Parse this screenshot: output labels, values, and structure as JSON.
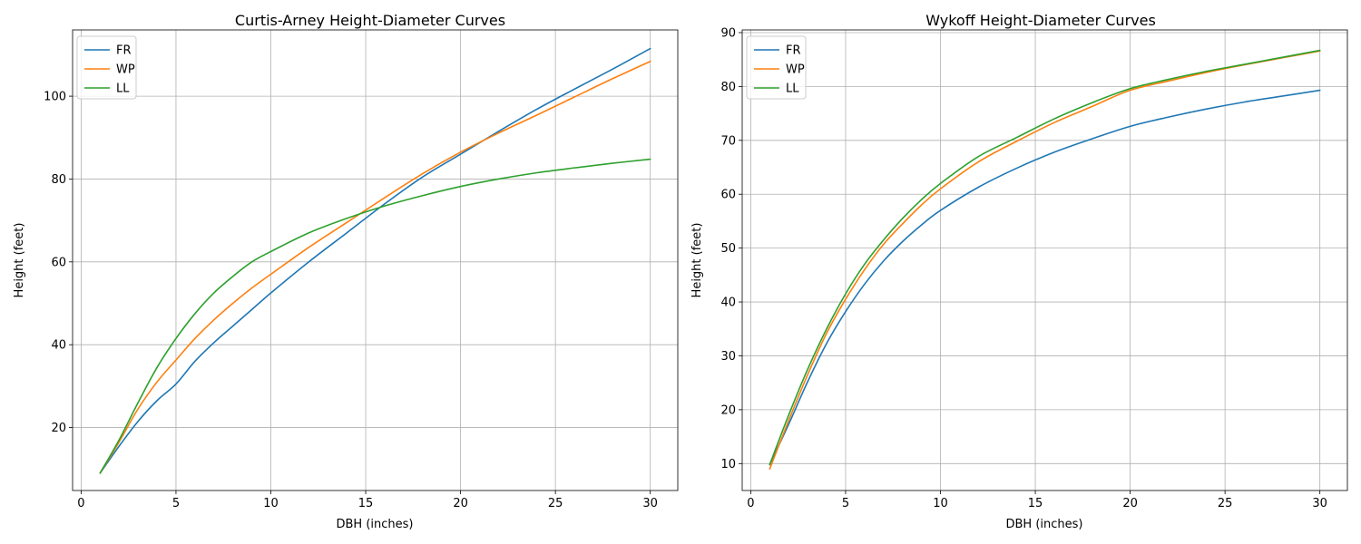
{
  "chart_data": [
    {
      "type": "line",
      "title": "Curtis-Arney Height-Diameter Curves",
      "xlabel": "DBH (inches)",
      "ylabel": "Height (feet)",
      "xlim": [
        -0.45,
        31.45
      ],
      "ylim": [
        4.8,
        116.0
      ],
      "xticks": [
        0,
        5,
        10,
        15,
        20,
        25,
        30
      ],
      "yticks": [
        20,
        40,
        60,
        80,
        100
      ],
      "grid": true,
      "legend": "upper-left",
      "x": [
        1,
        2,
        3,
        4,
        5,
        6,
        7,
        8,
        9,
        10,
        12,
        14,
        16,
        18,
        20,
        22,
        24,
        26,
        28,
        30
      ],
      "series": [
        {
          "name": "FR",
          "color": "#1f77b4",
          "values": [
            9,
            15.5,
            21.5,
            26.5,
            30.5,
            36,
            40.5,
            44.5,
            48.5,
            52.5,
            60,
            67,
            74,
            80.5,
            86,
            91.5,
            96.8,
            101.7,
            106.5,
            111.5
          ]
        },
        {
          "name": "WP",
          "color": "#ff7f0e",
          "values": [
            9,
            16.5,
            24.5,
            31,
            36.3,
            41.5,
            46,
            50,
            53.7,
            57,
            63.5,
            69.5,
            75.5,
            81.3,
            86.5,
            91.1,
            95.4,
            99.8,
            104.2,
            108.4
          ]
        },
        {
          "name": "LL",
          "color": "#2ca02c",
          "values": [
            9,
            17,
            26,
            34.5,
            41.5,
            47.5,
            52.5,
            56.5,
            60,
            62.5,
            67,
            70.5,
            73.5,
            76,
            78.2,
            80,
            81.5,
            82.7,
            83.8,
            84.8
          ]
        }
      ]
    },
    {
      "type": "line",
      "title": "Wykoff Height-Diameter Curves",
      "xlabel": "DBH (inches)",
      "ylabel": "Height (feet)",
      "xlim": [
        -0.45,
        31.45
      ],
      "ylim": [
        5.0,
        90.5
      ],
      "xticks": [
        0,
        5,
        10,
        15,
        20,
        25,
        30
      ],
      "yticks": [
        10,
        20,
        30,
        40,
        50,
        60,
        70,
        80,
        90
      ],
      "grid": true,
      "legend": "upper-left",
      "x": [
        1,
        2,
        3,
        4,
        5,
        6,
        7,
        8,
        9,
        10,
        12,
        14,
        16,
        18,
        20,
        22,
        24,
        26,
        28,
        30
      ],
      "series": [
        {
          "name": "FR",
          "color": "#1f77b4",
          "values": [
            9.8,
            17.3,
            25.2,
            32.3,
            38.2,
            43.3,
            47.6,
            51.2,
            54.3,
            57.0,
            61.3,
            64.8,
            67.8,
            70.3,
            72.6,
            74.3,
            75.8,
            77.1,
            78.2,
            79.3
          ]
        },
        {
          "name": "WP",
          "color": "#ff7f0e",
          "values": [
            9.0,
            18.0,
            26.5,
            34.2,
            40.5,
            46.0,
            50.7,
            54.5,
            58.0,
            61.0,
            66.0,
            69.8,
            73.3,
            76.3,
            79.3,
            81.0,
            82.6,
            84.0,
            85.3,
            86.6
          ]
        },
        {
          "name": "LL",
          "color": "#2ca02c",
          "values": [
            9.8,
            19.0,
            27.5,
            35.0,
            41.5,
            47.0,
            51.5,
            55.5,
            59.0,
            62.0,
            67.0,
            70.5,
            74.0,
            77.0,
            79.6,
            81.3,
            82.8,
            84.1,
            85.4,
            86.7
          ]
        }
      ]
    }
  ]
}
